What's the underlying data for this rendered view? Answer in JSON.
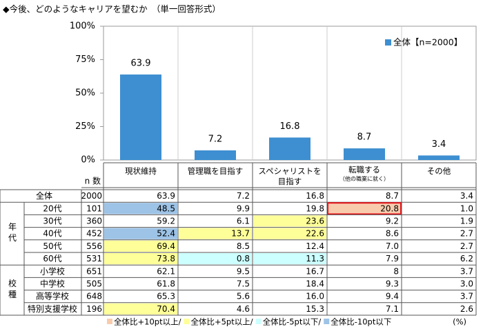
{
  "chart_data": {
    "type": "bar",
    "title": "◆今後、どのようなキャリアを望むか　（単一回答形式）",
    "categories": [
      "現状維持",
      "管理職を目指す",
      "スペシャリストを\n目指す",
      "転職する",
      "その他"
    ],
    "category_note": "（他の職業に就く）",
    "series": [
      {
        "name": "全体【n=2000】",
        "color": "#3d8fd1",
        "values": [
          63.9,
          7.2,
          16.8,
          8.7,
          3.4
        ]
      }
    ],
    "ylim": [
      0,
      100
    ],
    "yticks": [
      {
        "value": 0,
        "label": "0%"
      },
      {
        "value": 25,
        "label": "25%"
      },
      {
        "value": 50,
        "label": "50%"
      },
      {
        "value": 75,
        "label": "75%"
      },
      {
        "value": 100,
        "label": "100%"
      }
    ],
    "legend": "upper right"
  },
  "table": {
    "n_label": "n 数",
    "total": {
      "label": "全体",
      "n": 2000,
      "values": [
        63.9,
        7.2,
        16.8,
        8.7,
        3.4
      ]
    },
    "groups": [
      {
        "label": "年代",
        "rows": [
          {
            "label": "20代",
            "n": 101,
            "values": [
              48.5,
              9.9,
              19.8,
              20.8,
              1.0
            ],
            "value_labels": [
              "48.5",
              "9.9",
              "19.8",
              "20.8",
              "1.0"
            ],
            "colors": [
              "#9dc3e6",
              null,
              null,
              "#f8cbad",
              null
            ],
            "outlines": [
              null,
              null,
              null,
              "#e8141b",
              null
            ]
          },
          {
            "label": "30代",
            "n": 360,
            "values": [
              59.2,
              6.1,
              23.6,
              9.2,
              1.9
            ],
            "colors": [
              null,
              null,
              "#ffff99",
              null,
              null
            ]
          },
          {
            "label": "40代",
            "n": 452,
            "values": [
              52.4,
              13.7,
              22.6,
              8.6,
              2.7
            ],
            "colors": [
              "#9dc3e6",
              "#ffff99",
              "#ffff99",
              null,
              null
            ]
          },
          {
            "label": "50代",
            "n": 556,
            "values": [
              69.4,
              8.5,
              12.4,
              7.0,
              2.7
            ],
            "value_labels": [
              "69.4",
              "8.5",
              "12.4",
              "7.0",
              "2.7"
            ],
            "colors": [
              "#ffff99",
              null,
              null,
              null,
              null
            ]
          },
          {
            "label": "60代",
            "n": 531,
            "values": [
              73.8,
              0.8,
              11.3,
              7.9,
              6.2
            ],
            "colors": [
              "#ffff99",
              "#ccffff",
              "#ccffff",
              null,
              null
            ]
          }
        ]
      },
      {
        "label": "校種",
        "rows": [
          {
            "label": "小学校",
            "n": 651,
            "values": [
              62.1,
              9.5,
              16.7,
              8.0,
              3.7
            ]
          },
          {
            "label": "中学校",
            "n": 505,
            "values": [
              61.8,
              7.5,
              18.4,
              9.3,
              3.0
            ],
            "value_labels": [
              "61.8",
              "7.5",
              "18.4",
              "9.3",
              "3.0"
            ]
          },
          {
            "label": "高等学校",
            "n": 648,
            "values": [
              65.3,
              5.6,
              16.0,
              9.4,
              3.7
            ],
            "value_labels": [
              "65.3",
              "5.6",
              "16.0",
              "9.4",
              "3.7"
            ]
          },
          {
            "label": "特別支援学校",
            "n": 196,
            "values": [
              70.4,
              4.6,
              15.3,
              7.1,
              2.6
            ],
            "colors": [
              "#ffff99",
              null,
              null,
              null,
              null
            ]
          }
        ]
      }
    ],
    "highlight_legend": [
      {
        "label": "全体比+10pt以上/",
        "color": "#f8cbad"
      },
      {
        "label": "全体比+5pt以上/",
        "color": "#ffff99"
      },
      {
        "label": "全体比-5pt以下/",
        "color": "#ccffff"
      },
      {
        "label": "全体比-10pt以下",
        "color": "#9dc3e6"
      }
    ],
    "unit": "(%)"
  }
}
